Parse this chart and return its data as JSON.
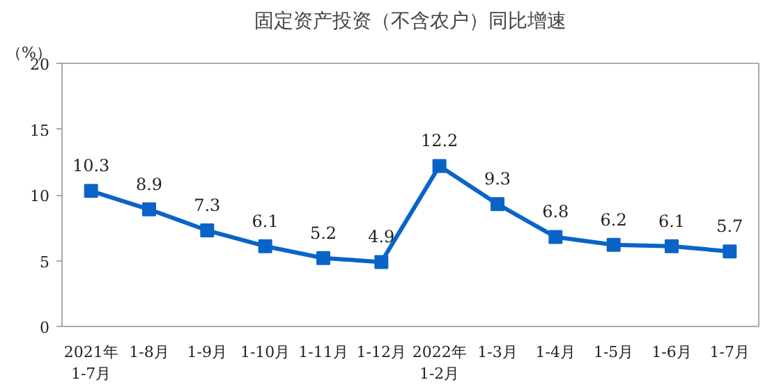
{
  "chart_data": {
    "type": "line",
    "title": "固定资产投资（不含农户）同比增速",
    "ylabel": "（%）",
    "categories": [
      "2021年\n1-7月",
      "1-8月",
      "1-9月",
      "1-10月",
      "1-11月",
      "1-12月",
      "2022年\n1-2月",
      "1-3月",
      "1-4月",
      "1-5月",
      "1-6月",
      "1-7月"
    ],
    "series": [
      {
        "color": "#0a64c8",
        "values": [
          10.3,
          8.9,
          7.3,
          6.1,
          5.2,
          4.9,
          12.2,
          9.3,
          6.8,
          6.2,
          6.1,
          5.7
        ]
      }
    ],
    "ylim": [
      0,
      20
    ],
    "yticks": [
      0,
      5,
      10,
      15,
      20
    ],
    "marker": "square",
    "data_labels": true,
    "grid": false
  }
}
